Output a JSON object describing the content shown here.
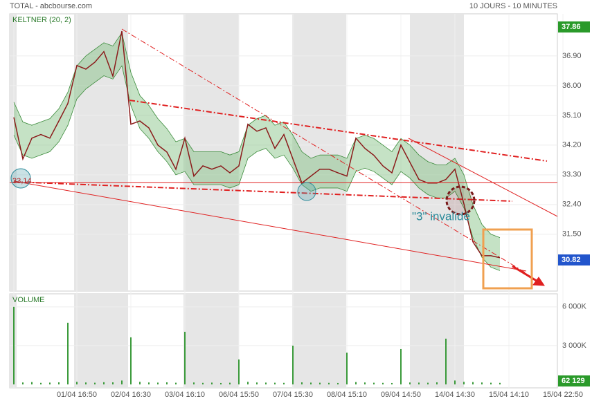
{
  "header": {
    "title": "TOTAL - abcbourse.com",
    "period": "10 JOURS - 10 MINUTES"
  },
  "chart_data": [
    {
      "type": "line",
      "title": "KELTNER (20, 2)",
      "categories": [
        "",
        null,
        null,
        null,
        null,
        null,
        null,
        "01/04 16:50",
        null,
        null,
        null,
        null,
        null,
        "02/04 16:30",
        null,
        null,
        null,
        null,
        null,
        "03/04 16:10",
        null,
        null,
        null,
        null,
        null,
        "06/04 15:50",
        null,
        null,
        null,
        null,
        null,
        "07/04 15:30",
        null,
        null,
        null,
        null,
        null,
        "08/04 15:10",
        null,
        null,
        null,
        null,
        null,
        "09/04 14:50",
        null,
        null,
        null,
        null,
        null,
        "14/04 14:30",
        null,
        null,
        null,
        null,
        null,
        "15/04 14:10",
        null,
        null,
        null,
        null,
        null,
        "15/04 22:50"
      ],
      "series": [
        {
          "name": "Keltner",
          "color": "#7fbf7f",
          "upper": [
            35.5,
            34.9,
            34.8,
            34.9,
            35.0,
            35.3,
            35.8,
            36.6,
            36.9,
            37.1,
            37.3,
            37.2,
            37.6,
            36.4,
            35.7,
            35.4,
            35.0,
            34.7,
            34.3,
            34.4,
            34.0,
            34.0,
            34.0,
            34.0,
            33.9,
            34.0,
            34.8,
            35.0,
            35.1,
            34.8,
            34.9,
            34.5,
            34.0,
            33.8,
            33.9,
            33.9,
            33.9,
            33.8,
            34.4,
            34.5,
            34.4,
            34.2,
            34.0,
            34.4,
            34.2,
            33.9,
            33.7,
            33.6,
            33.6,
            33.8,
            33.3,
            32.4,
            31.8,
            31.5,
            31.4,
            null,
            null,
            null,
            null,
            null,
            null,
            null
          ],
          "lower": [
            34.5,
            33.9,
            33.8,
            33.9,
            34.0,
            34.3,
            34.8,
            35.6,
            35.9,
            36.1,
            36.3,
            36.2,
            36.6,
            35.4,
            34.7,
            34.4,
            34.0,
            33.7,
            33.3,
            33.4,
            33.0,
            33.0,
            33.0,
            33.0,
            32.9,
            33.0,
            33.8,
            34.0,
            34.1,
            33.8,
            33.9,
            33.5,
            33.0,
            32.8,
            32.9,
            32.9,
            32.9,
            32.8,
            33.4,
            33.5,
            33.4,
            33.2,
            33.0,
            33.4,
            33.2,
            32.9,
            32.7,
            32.6,
            32.6,
            32.8,
            32.3,
            31.4,
            30.8,
            30.5,
            30.4,
            null,
            null,
            null,
            null,
            null,
            null,
            null
          ]
        },
        {
          "name": "TOTAL",
          "color": "#8b1a1a",
          "values": [
            35.04,
            33.78,
            34.41,
            34.52,
            34.41,
            34.93,
            35.46,
            36.61,
            36.5,
            36.71,
            37.03,
            36.29,
            37.65,
            34.83,
            34.93,
            34.72,
            34.2,
            33.99,
            33.47,
            34.41,
            33.26,
            33.57,
            33.47,
            33.57,
            33.36,
            33.57,
            34.83,
            34.62,
            34.72,
            34.1,
            34.52,
            33.78,
            33.05,
            33.26,
            33.47,
            33.47,
            33.36,
            33.26,
            34.41,
            34.1,
            33.89,
            33.57,
            33.36,
            34.2,
            33.68,
            33.16,
            33.05,
            33.05,
            33.16,
            33.47,
            32.42,
            31.27,
            30.85,
            30.85,
            30.79,
            null,
            null,
            null,
            null,
            null,
            null,
            null
          ]
        }
      ],
      "ylim": [
        29.8,
        38.07
      ],
      "yticks": [
        {
          "value": 36.9,
          "label": "36.90"
        },
        {
          "value": 36.0,
          "label": "36.00"
        },
        {
          "value": 35.1,
          "label": "35.10"
        },
        {
          "value": 34.2,
          "label": "34.20"
        },
        {
          "value": 33.3,
          "label": "33.30"
        },
        {
          "value": 32.4,
          "label": "32.40"
        },
        {
          "value": 31.5,
          "label": "31.50"
        }
      ],
      "high": {
        "value": 37.86,
        "label": "37.86"
      },
      "last": {
        "value": 30.82,
        "label": "30.82"
      },
      "annotations": [
        "33,14",
        "\"3\" invalidé"
      ],
      "grid": true
    },
    {
      "type": "bar",
      "title": "VOLUME",
      "color": "#3a9a3a",
      "values": [
        6000,
        150,
        180,
        120,
        140,
        160,
        4770,
        200,
        150,
        130,
        170,
        160,
        300,
        3640,
        200,
        150,
        140,
        160,
        130,
        4070,
        150,
        120,
        140,
        110,
        130,
        1930,
        200,
        150,
        140,
        130,
        120,
        3000,
        160,
        140,
        130,
        120,
        110,
        2460,
        180,
        150,
        130,
        120,
        110,
        2730,
        150,
        140,
        130,
        160,
        3540,
        300,
        200,
        180,
        150,
        130,
        120,
        null,
        null,
        null,
        null,
        null,
        null,
        null
      ],
      "ylim": [
        0,
        6900
      ],
      "yticks": [
        {
          "value": 6000,
          "label": "6 000K"
        },
        {
          "value": 3000,
          "label": "3 000K"
        }
      ],
      "last_label": "62 129"
    }
  ]
}
